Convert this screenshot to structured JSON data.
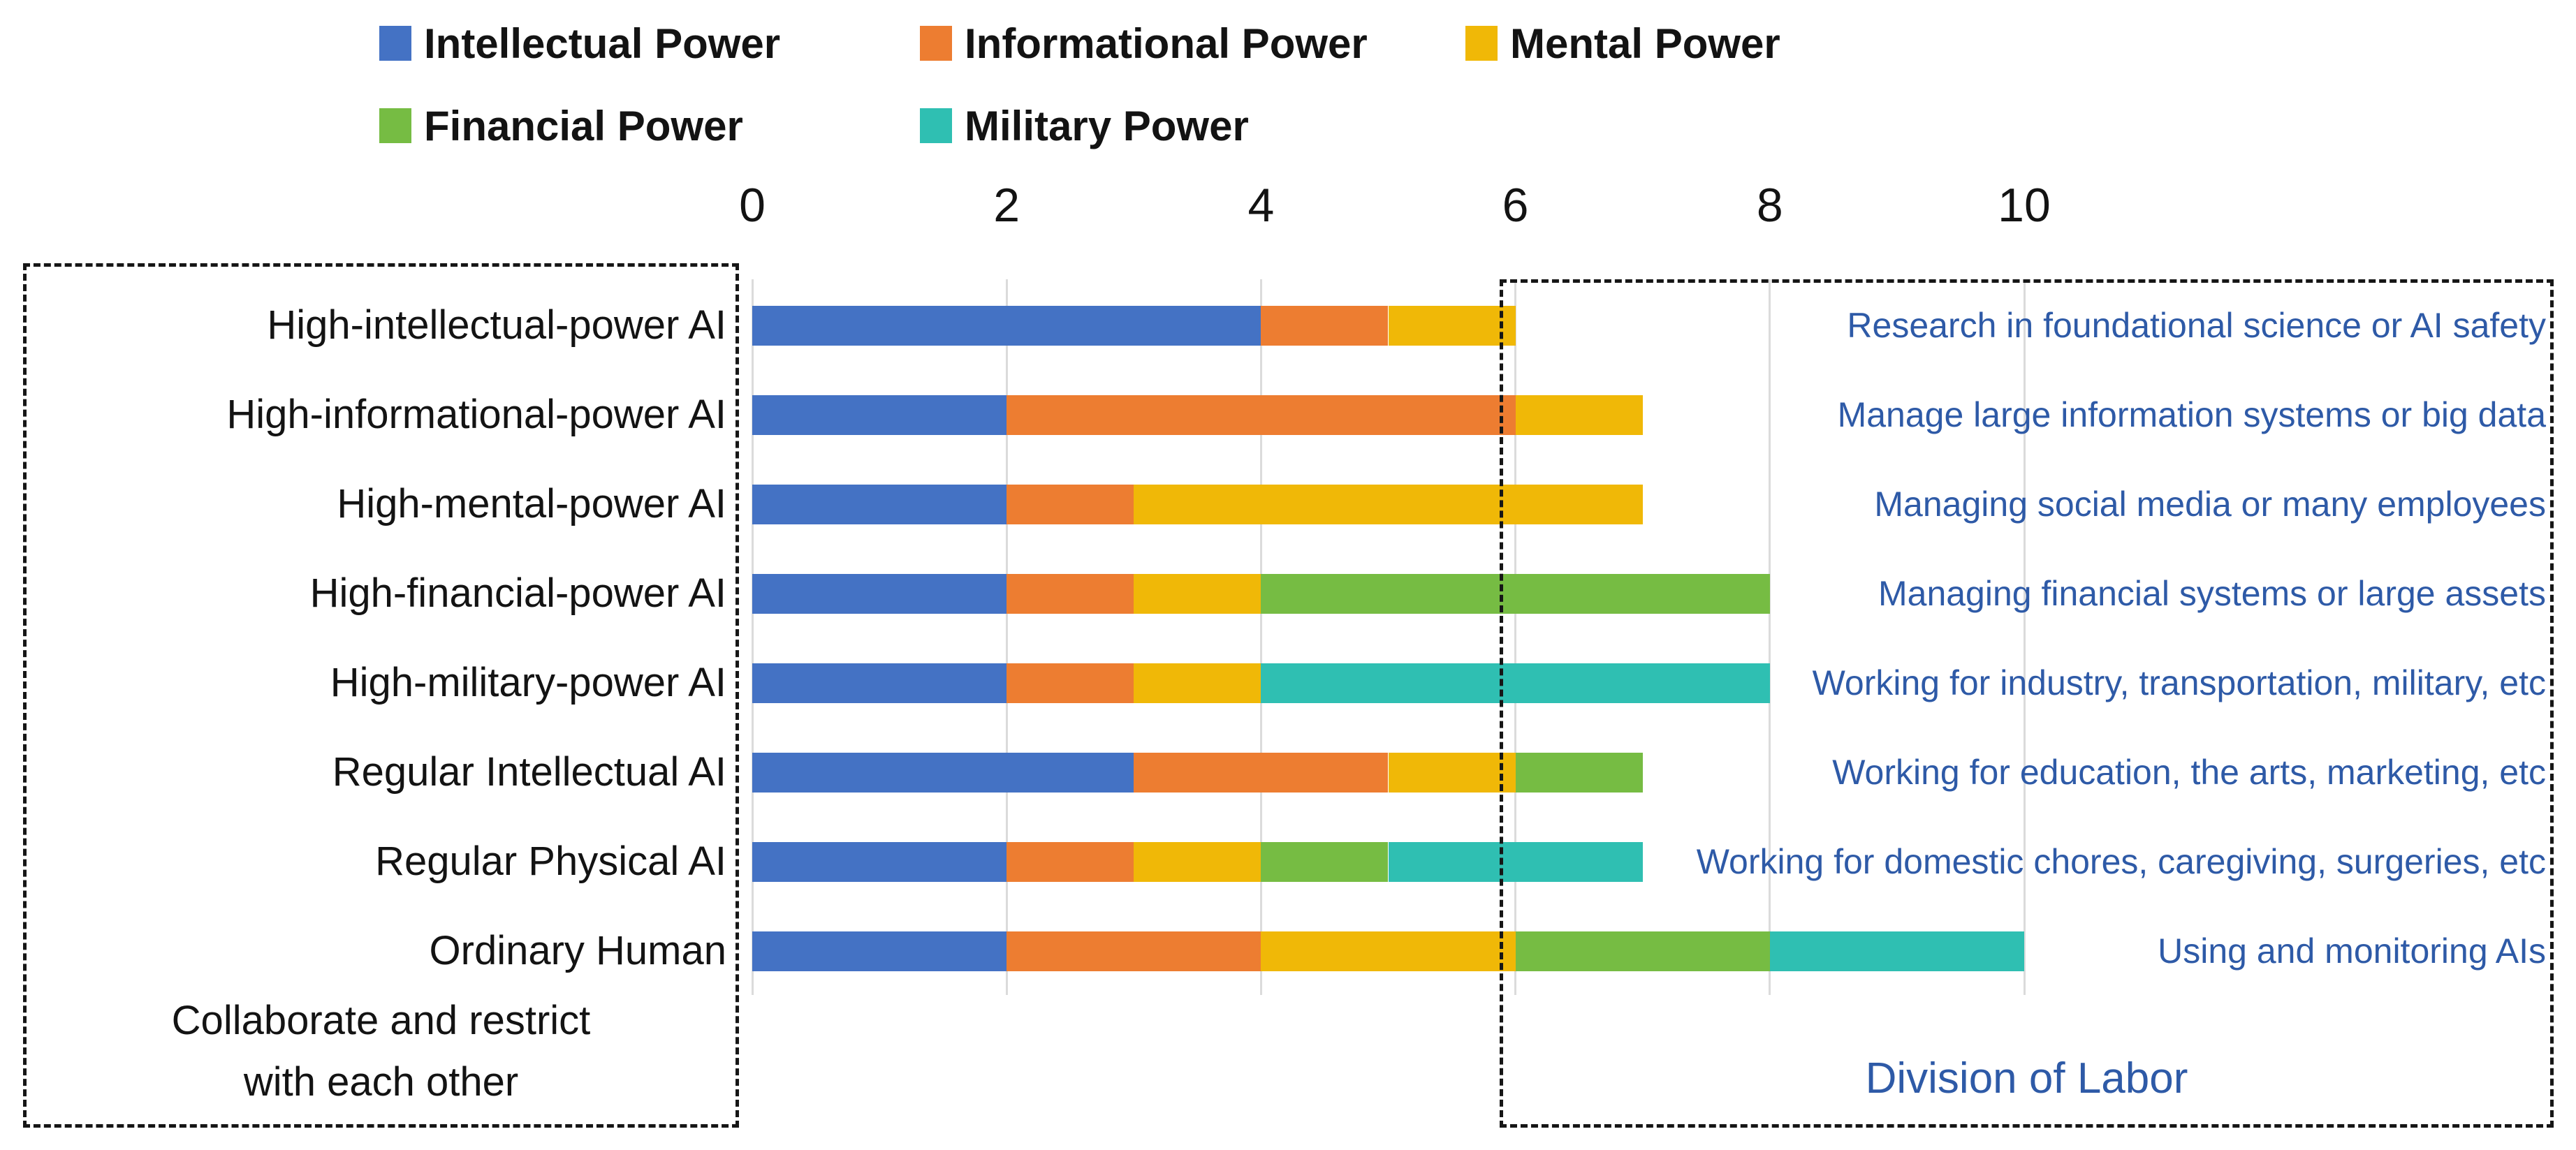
{
  "legend": {
    "rows": [
      [
        {
          "label": "Intellectual Power",
          "color": "#4472C4"
        },
        {
          "label": "Informational Power",
          "color": "#ED7D31"
        },
        {
          "label": "Mental Power",
          "color": "#F0B807"
        }
      ],
      [
        {
          "label": "Financial Power",
          "color": "#76BC43"
        },
        {
          "label": "Military Power",
          "color": "#2FBFB2"
        }
      ]
    ]
  },
  "chart_data": {
    "type": "bar",
    "orientation": "horizontal",
    "stacked": true,
    "title": "",
    "xlabel": "",
    "ylabel": "",
    "xlim": [
      0,
      10
    ],
    "x_ticks": [
      0,
      2,
      4,
      6,
      8,
      10
    ],
    "grid": true,
    "legend_position": "top",
    "categories": [
      "High-intellectual-power AI",
      "High-informational-power AI",
      "High-mental-power AI",
      "High-financial-power AI",
      "High-military-power AI",
      "Regular Intellectual AI",
      "Regular Physical AI",
      "Ordinary Human"
    ],
    "series": [
      {
        "name": "Intellectual Power",
        "color": "#4472C4",
        "values": [
          4,
          2,
          2,
          2,
          2,
          3,
          2,
          2
        ]
      },
      {
        "name": "Informational Power",
        "color": "#ED7D31",
        "values": [
          1,
          4,
          1,
          1,
          1,
          2,
          1,
          2
        ]
      },
      {
        "name": "Mental Power",
        "color": "#F0B807",
        "values": [
          1,
          1,
          4,
          1,
          1,
          1,
          1,
          2
        ]
      },
      {
        "name": "Financial Power",
        "color": "#76BC43",
        "values": [
          0,
          0,
          0,
          4,
          0,
          1,
          1,
          2
        ]
      },
      {
        "name": "Military Power",
        "color": "#2FBFB2",
        "values": [
          0,
          0,
          0,
          0,
          4,
          0,
          2,
          2
        ]
      }
    ],
    "annotations": [
      "Research in foundational science or AI safety",
      "Manage large information systems or big data",
      "Managing social media or many employees",
      "Managing financial systems or large assets",
      "Working for industry, transportation, military, etc",
      "Working for education, the arts, marketing, etc",
      "Working for domestic chores, caregiving, surgeries, etc",
      "Using and monitoring AIs"
    ],
    "annotation_color": "#2E5AA7"
  },
  "captions": {
    "collaborate_line1": "Collaborate and restrict",
    "collaborate_line2": "with each other",
    "division": "Division of Labor"
  }
}
